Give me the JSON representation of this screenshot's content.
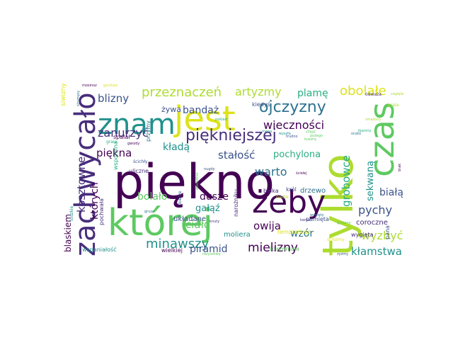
{
  "cloud": {
    "palette": {
      "dark_purple": "#440154",
      "indigo": "#472d7b",
      "blue": "#3b528b",
      "slate": "#2c728e",
      "teal": "#21918c",
      "sea": "#28ae80",
      "green": "#5ec962",
      "lime": "#addc30",
      "yellow": "#dde318"
    },
    "words": [
      {
        "text": "piękno",
        "color": "#440154"
      },
      {
        "text": "której",
        "color": "#5ec962"
      },
      {
        "text": "jest",
        "color": "#dde318"
      },
      {
        "text": "tylko",
        "color": "#addc30"
      },
      {
        "text": "czas",
        "color": "#5ec962"
      },
      {
        "text": "zachwycało",
        "color": "#472d7b"
      },
      {
        "text": "znam",
        "color": "#21918c"
      },
      {
        "text": "żeby",
        "color": "#440154"
      },
      {
        "text": "piękniejszej",
        "color": "#472d7b"
      },
      {
        "text": "ojczyzny",
        "color": "#2c728e"
      },
      {
        "text": "przeznaczeń",
        "color": "#addc30"
      },
      {
        "text": "artyzmy",
        "color": "#addc30"
      },
      {
        "text": "obolałe",
        "color": "#dde318"
      },
      {
        "text": "plamę",
        "color": "#28ae80"
      },
      {
        "text": "blizny",
        "color": "#3b528b"
      },
      {
        "text": "zanurzyć",
        "color": "#472d7b"
      },
      {
        "text": "wieczności",
        "color": "#440154"
      },
      {
        "text": "kładą",
        "color": "#21918c"
      },
      {
        "text": "stałość",
        "color": "#3b528b"
      },
      {
        "text": "pochylona",
        "color": "#28ae80"
      },
      {
        "text": "piękna",
        "color": "#440154"
      },
      {
        "text": "warto",
        "color": "#2c728e"
      },
      {
        "text": "grobowce",
        "color": "#28ae80"
      },
      {
        "text": "sekwaną",
        "color": "#21918c"
      },
      {
        "text": "kosztowne",
        "color": "#472d7b"
      },
      {
        "text": "których",
        "color": "#440154"
      },
      {
        "text": "bolało",
        "color": "#5ec962"
      },
      {
        "text": "dusze",
        "color": "#440154"
      },
      {
        "text": "białą",
        "color": "#3b528b"
      },
      {
        "text": "pychy",
        "color": "#3b528b"
      },
      {
        "text": "owija",
        "color": "#440154"
      },
      {
        "text": "gałąź",
        "color": "#21918c"
      },
      {
        "text": "ciało",
        "color": "#5ec962"
      },
      {
        "text": "wzór",
        "color": "#2c728e"
      },
      {
        "text": "wyzbyć",
        "color": "#addc30"
      },
      {
        "text": "minawszy",
        "color": "#21918c"
      },
      {
        "text": "piramid",
        "color": "#3b528b"
      },
      {
        "text": "mielizny",
        "color": "#440154"
      },
      {
        "text": "kłamstwa",
        "color": "#21918c"
      },
      {
        "text": "blaskiem",
        "color": "#440154"
      },
      {
        "text": "bandaż",
        "color": "#3b528b"
      },
      {
        "text": "żywa",
        "color": "#3b528b"
      },
      {
        "text": "kiedyś",
        "color": "#3b528b"
      },
      {
        "text": "siwizny",
        "color": "#dde318"
      },
      {
        "text": "wspomina",
        "color": "#28ae80"
      },
      {
        "text": "drzewo",
        "color": "#2c728e"
      },
      {
        "text": "coroczne",
        "color": "#472d7b"
      },
      {
        "text": "układane",
        "color": "#3b528b"
      },
      {
        "text": "moliera",
        "color": "#21918c"
      },
      {
        "text": "wspaniałość",
        "color": "#21918c"
      },
      {
        "text": "wielkiej",
        "color": "#440154"
      },
      {
        "text": "pamięta",
        "color": "#3b528b"
      },
      {
        "text": "wygięta",
        "color": "#472d7b"
      },
      {
        "text": "templariusz",
        "color": "#dde318"
      },
      {
        "text": "ściemniała",
        "color": "#5ec962"
      },
      {
        "text": "pana",
        "color": "#3b528b"
      },
      {
        "text": "zyzmy",
        "color": "#3b528b"
      },
      {
        "text": "ludzkie",
        "color": "#21918c"
      },
      {
        "text": "pochwała",
        "color": "#472d7b"
      },
      {
        "text": "przymy",
        "color": "#2c728e"
      },
      {
        "text": "uliczne",
        "color": "#472d7b"
      },
      {
        "text": "rezyszliwy",
        "color": "#5ec962"
      },
      {
        "text": "nieźle",
        "color": "#addc30"
      },
      {
        "text": "belka",
        "color": "#472d7b"
      },
      {
        "text": "król",
        "color": "#3b528b"
      },
      {
        "text": "narożniku",
        "color": "#472d7b"
      },
      {
        "text": "wygięty",
        "color": "#2c728e"
      },
      {
        "text": "ścisłej",
        "color": "#440154"
      },
      {
        "text": "schizmy",
        "color": "#dde318"
      },
      {
        "text": "spalał",
        "color": "#440154"
      },
      {
        "text": "graia",
        "color": "#addc30"
      },
      {
        "text": "dokładnie",
        "color": "#5ec962"
      },
      {
        "text": "knuty",
        "color": "#472d7b"
      },
      {
        "text": "strumpiy",
        "color": "#2c728e"
      },
      {
        "text": "nugdy",
        "color": "#3b528b"
      },
      {
        "text": "graio",
        "color": "#28ae80"
      },
      {
        "text": "gwizdy",
        "color": "#440154"
      },
      {
        "text": "ścichły",
        "color": "#3b528b"
      },
      {
        "text": "choć",
        "color": "#5ec962"
      },
      {
        "text": "pożegn",
        "color": "#5ec962"
      },
      {
        "text": "tkaniny",
        "color": "#28ae80"
      },
      {
        "text": "smażony",
        "color": "#addc30"
      },
      {
        "text": "wyszła",
        "color": "#21918c"
      },
      {
        "text": "brak",
        "color": "#440154"
      },
      {
        "text": "mena",
        "color": "#21918c"
      },
      {
        "text": "odważa",
        "color": "#472d7b"
      },
      {
        "text": "ocalić",
        "color": "#2c728e"
      },
      {
        "text": "mosinoz",
        "color": "#440154"
      },
      {
        "text": "zagięta",
        "color": "#addc30"
      },
      {
        "text": "trudno",
        "color": "#3b528b"
      },
      {
        "text": "kuszny",
        "color": "#5ec962"
      },
      {
        "text": "karna",
        "color": "#472d7b"
      },
      {
        "text": "gliniany",
        "color": "#5ec962"
      },
      {
        "text": "dobrze",
        "color": "#3b528b"
      },
      {
        "text": "gruzy",
        "color": "#2c728e"
      },
      {
        "text": "pokład",
        "color": "#28ae80"
      },
      {
        "text": "gonitwa",
        "color": "#dde318"
      }
    ]
  }
}
